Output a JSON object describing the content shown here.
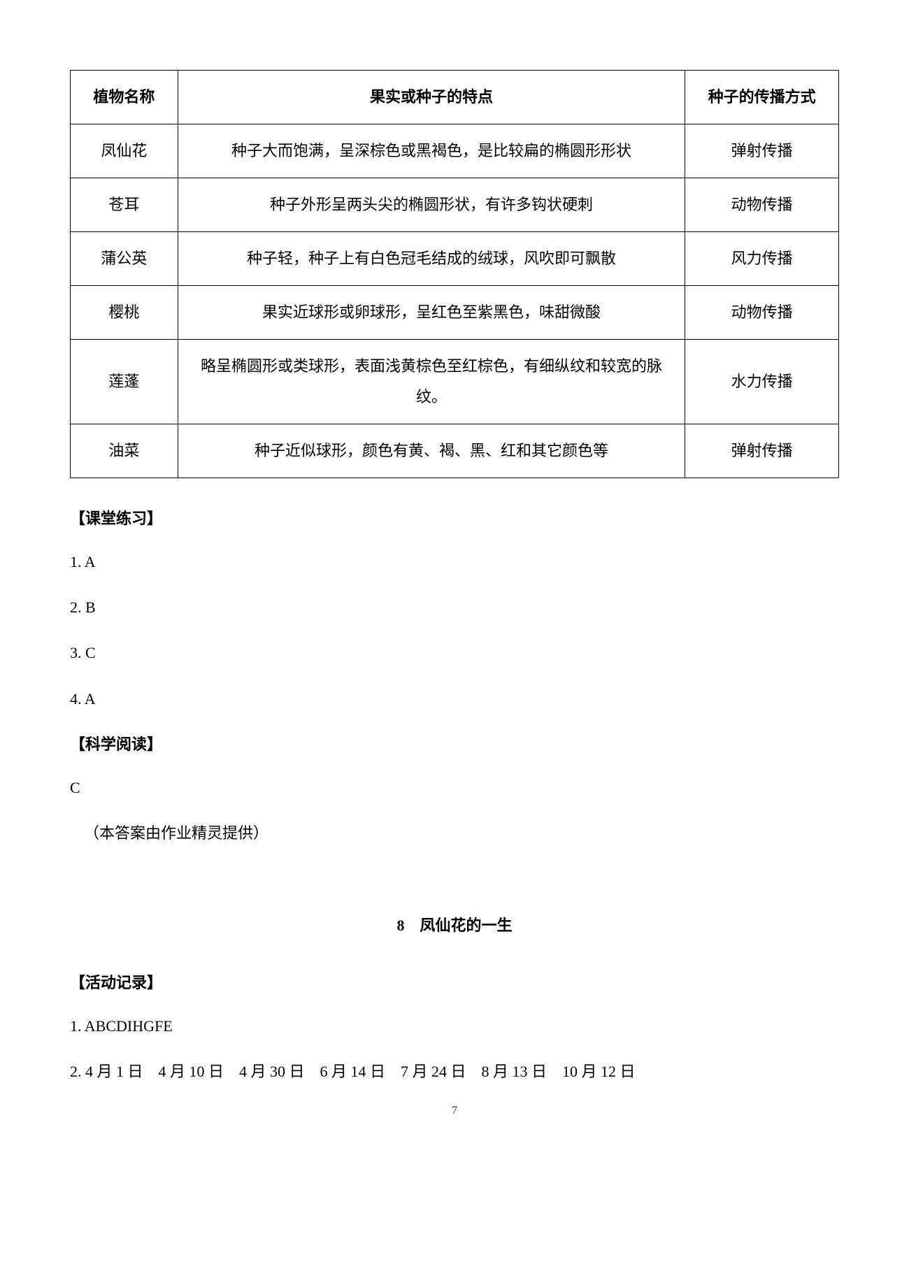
{
  "table": {
    "headers": {
      "col1": "植物名称",
      "col2": "果实或种子的特点",
      "col3": "种子的传播方式"
    },
    "rows": [
      {
        "name": "凤仙花",
        "feature": "种子大而饱满，呈深棕色或黑褐色，是比较扁的椭圆形形状",
        "method": "弹射传播"
      },
      {
        "name": "苍耳",
        "feature": "种子外形呈两头尖的椭圆形状，有许多钩状硬刺",
        "method": "动物传播"
      },
      {
        "name": "蒲公英",
        "feature": "种子轻，种子上有白色冠毛结成的绒球，风吹即可飘散",
        "method": "风力传播"
      },
      {
        "name": "樱桃",
        "feature": "果实近球形或卵球形，呈红色至紫黑色，味甜微酸",
        "method": "动物传播"
      },
      {
        "name": "莲蓬",
        "feature": "略呈椭圆形或类球形，表面浅黄棕色至红棕色，有细纵纹和较宽的脉纹。",
        "method": "水力传播"
      },
      {
        "name": "油菜",
        "feature": "种子近似球形，颜色有黄、褐、黑、红和其它颜色等",
        "method": "弹射传播"
      }
    ]
  },
  "sections": {
    "classroom_exercise": {
      "heading": "【课堂练习】",
      "answers": {
        "a1": "1.  A",
        "a2": "2.  B",
        "a3": "3.  C",
        "a4": "4.  A"
      }
    },
    "science_reading": {
      "heading": "【科学阅读】",
      "answer": "C"
    },
    "note": "（本答案由作业精灵提供）",
    "chapter": {
      "title": "8　凤仙花的一生"
    },
    "activity_record": {
      "heading": "【活动记录】",
      "answers": {
        "a1": "1.  ABCDIHGFE",
        "a2": "2. 4 月 1 日　4 月 10 日　4 月 30 日　6 月 14 日　7 月 24 日　8 月 13 日　10 月 12 日"
      }
    }
  },
  "page_number": "7"
}
